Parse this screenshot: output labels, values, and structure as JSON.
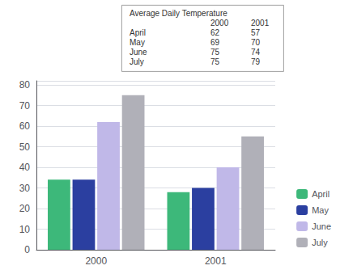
{
  "chart_data": {
    "type": "bar",
    "categories": [
      "2000",
      "2001"
    ],
    "series": [
      {
        "name": "April",
        "color": "#3db87a",
        "values": [
          34,
          28
        ]
      },
      {
        "name": "May",
        "color": "#2b3fa0",
        "values": [
          34,
          30
        ]
      },
      {
        "name": "June",
        "color": "#c0b8e8",
        "values": [
          62,
          40
        ]
      },
      {
        "name": "July",
        "color": "#b0b0b8",
        "values": [
          75,
          55
        ]
      }
    ],
    "ylim": [
      0,
      82
    ],
    "yticks": [
      0,
      10,
      20,
      30,
      40,
      50,
      60,
      70,
      80
    ],
    "grid": true,
    "legend": "lower right",
    "annotation": {
      "title": "Average Daily Temperature",
      "columns": [
        "2000",
        "2001"
      ],
      "rows": [
        [
          "April",
          "62",
          "57"
        ],
        [
          "May",
          "69",
          "70"
        ],
        [
          "June",
          "75",
          "74"
        ],
        [
          "July",
          "75",
          "79"
        ]
      ]
    }
  }
}
